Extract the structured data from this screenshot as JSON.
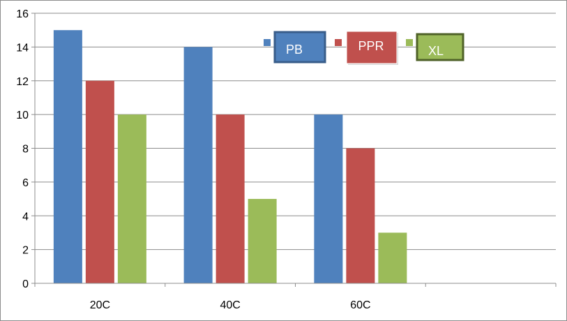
{
  "chart_data": {
    "type": "bar",
    "categories": [
      "20C",
      "40C",
      "60C",
      ""
    ],
    "series": [
      {
        "name": "PB",
        "color": "#4f81bd",
        "values": [
          15,
          14,
          10,
          null
        ]
      },
      {
        "name": "PPR",
        "color": "#c0504d",
        "values": [
          12,
          10,
          8,
          null
        ]
      },
      {
        "name": "XL",
        "color": "#9bbb59",
        "values": [
          10,
          5,
          3,
          null
        ]
      }
    ],
    "ylim": [
      0,
      16
    ],
    "yticks": [
      0,
      2,
      4,
      6,
      8,
      10,
      12,
      14,
      16
    ],
    "grid": true,
    "legend": "top-center",
    "legend_box_borders": [
      "#385d8a",
      "#ffffff",
      "#4f6228"
    ]
  }
}
